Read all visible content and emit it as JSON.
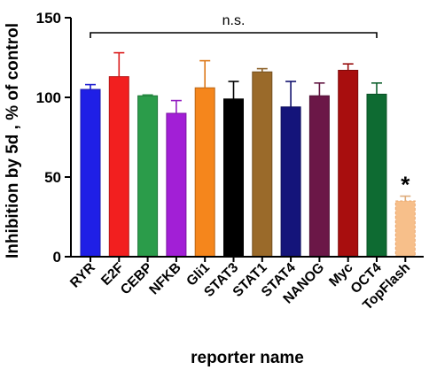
{
  "chart_data": {
    "type": "bar",
    "xlabel": "reporter name",
    "ylabel": "Inhibition by 5d , % of control",
    "ylim": [
      0,
      150
    ],
    "yticks": [
      "0",
      "50",
      "100",
      "150"
    ],
    "grid": false,
    "categories": [
      "RYR",
      "E2F",
      "CEBP",
      "NFKB",
      "Gli1",
      "STAT3",
      "STAT1",
      "STAT4",
      "NANOG",
      "Myc",
      "OCT4",
      "TopFlash"
    ],
    "values": [
      105,
      113,
      101,
      90,
      106,
      99,
      116,
      94,
      101,
      117,
      102,
      35
    ],
    "error_upper": [
      108,
      128,
      101.5,
      98,
      123,
      110,
      118,
      110,
      109,
      121,
      109,
      38
    ],
    "colors": [
      "#1f1fe6",
      "#f21f1f",
      "#2b9c4a",
      "#a21fd6",
      "#f5861c",
      "#000000",
      "#9a6a2a",
      "#14147a",
      "#6b1747",
      "#a80e0e",
      "#0e6b32",
      "#f7bf8a"
    ],
    "bar_styles": [
      "solid",
      "solid",
      "solid",
      "solid",
      "solid",
      "solid",
      "solid",
      "solid",
      "solid",
      "solid",
      "solid",
      "dashed"
    ],
    "annotations": {
      "ns_label": "n.s.",
      "ns_from": "RYR",
      "ns_to": "OCT4",
      "significance_marker": "*",
      "significance_category": "TopFlash"
    }
  }
}
